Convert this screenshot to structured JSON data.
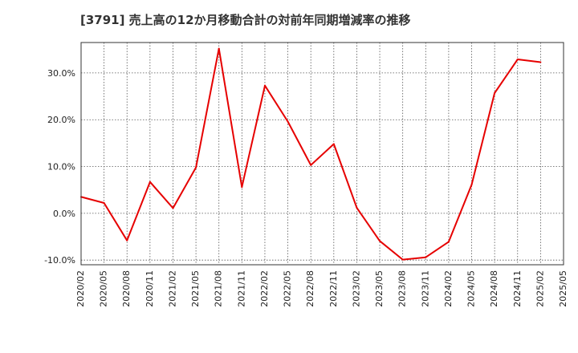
{
  "chart_data": {
    "type": "line",
    "title": "[3791]  売上高の12か月移動合計の対前年同期増減率の推移",
    "xlabel": "",
    "ylabel": "",
    "ylim": [
      -11,
      36.5
    ],
    "y_ticks": [
      -10,
      0,
      10,
      20,
      30
    ],
    "y_tick_labels": [
      "-10.0%",
      "0.0%",
      "10.0%",
      "20.0%",
      "30.0%"
    ],
    "x_ticks": [
      "2020/02",
      "2020/05",
      "2020/08",
      "2020/11",
      "2021/02",
      "2021/05",
      "2021/08",
      "2021/11",
      "2022/02",
      "2022/05",
      "2022/08",
      "2022/11",
      "2023/02",
      "2023/05",
      "2023/08",
      "2023/11",
      "2024/02",
      "2024/05",
      "2024/08",
      "2024/11",
      "2025/02",
      "2025/05"
    ],
    "grid": true,
    "series_color": "#e60000",
    "series": [
      {
        "x": [
          "2020/02",
          "2020/05",
          "2020/08",
          "2020/11",
          "2021/02",
          "2021/05",
          "2021/08",
          "2021/11",
          "2022/02",
          "2022/05",
          "2022/08",
          "2022/11",
          "2023/02",
          "2023/05",
          "2023/08",
          "2023/11",
          "2024/02",
          "2024/05",
          "2024/08",
          "2024/11",
          "2025/02"
        ],
        "values": [
          3.5,
          2.2,
          -5.8,
          6.7,
          1.1,
          9.8,
          35.2,
          5.6,
          27.3,
          19.6,
          10.3,
          14.8,
          1.2,
          -5.9,
          -9.9,
          -9.4,
          -6.1,
          6.1,
          25.7,
          32.9,
          32.3
        ]
      }
    ]
  }
}
